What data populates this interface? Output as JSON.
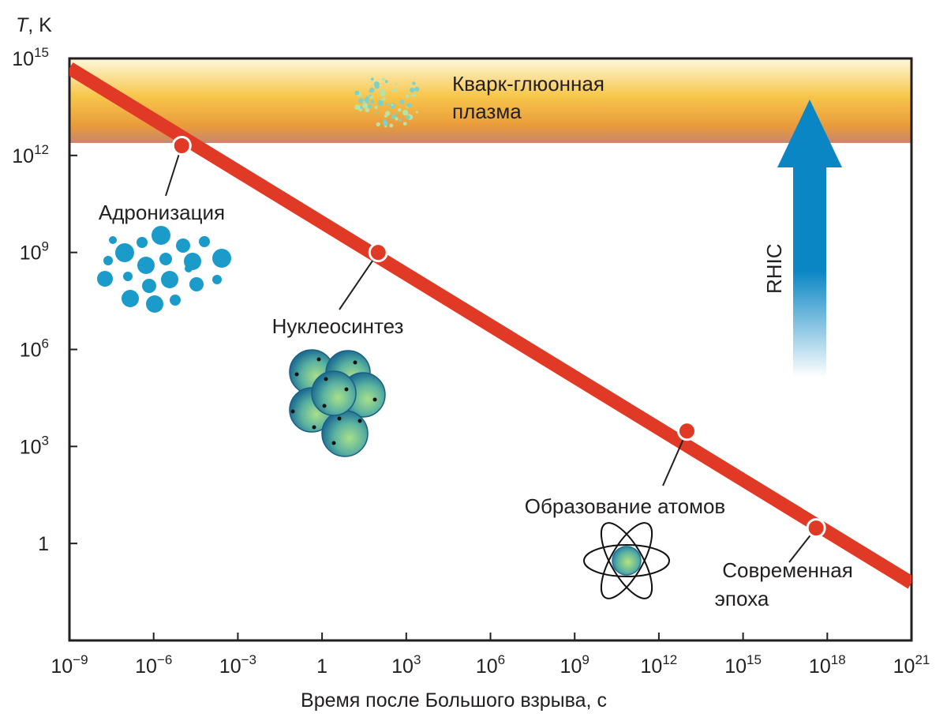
{
  "chart_data": {
    "type": "line",
    "xscale": "log",
    "yscale": "log",
    "xlim": [
      1e-09,
      1e+21
    ],
    "ylim": [
      0.001,
      1000000000000000.0
    ],
    "ylabel_var": "T",
    "ylabel_unit": ", K",
    "xlabel": "Время после Большого взрыва, с",
    "x_ticks": [
      {
        "base": "10",
        "exp": "−9"
      },
      {
        "base": "10",
        "exp": "−6"
      },
      {
        "base": "10",
        "exp": "−3"
      },
      {
        "base": "1",
        "exp": ""
      },
      {
        "base": "10",
        "exp": "3"
      },
      {
        "base": "10",
        "exp": "6"
      },
      {
        "base": "10",
        "exp": "9"
      },
      {
        "base": "10",
        "exp": "12"
      },
      {
        "base": "10",
        "exp": "15"
      },
      {
        "base": "10",
        "exp": "18"
      },
      {
        "base": "10",
        "exp": "21"
      }
    ],
    "y_ticks": [
      {
        "base": "10",
        "exp": "15"
      },
      {
        "base": "10",
        "exp": "12"
      },
      {
        "base": "10",
        "exp": "9"
      },
      {
        "base": "10",
        "exp": "6"
      },
      {
        "base": "10",
        "exp": "3"
      },
      {
        "base": "1",
        "exp": ""
      }
    ],
    "series": [
      {
        "x": [
          1e-09,
          1e+21
        ],
        "y": [
          500000000000000.0,
          0.06
        ],
        "color": "#e03a26"
      }
    ],
    "events": [
      {
        "name": "hadronization",
        "x": 1e-05,
        "y": 2000000000000.0,
        "label": "Адронизация"
      },
      {
        "name": "nucleosynthesis",
        "x": 100,
        "y": 1000000000.0,
        "label": "Нуклеосинтез"
      },
      {
        "name": "atom-formation",
        "x": 10000000000000.0,
        "y": 3000,
        "label": "Образование атомов"
      },
      {
        "name": "present-epoch",
        "x": 4e+17,
        "y": 3,
        "label_lines": [
          "Современная",
          "эпоха"
        ]
      }
    ],
    "band": {
      "y_range": [
        1500000000000.0,
        1000000000000000.0
      ],
      "label_lines": [
        "Кварк-глюонная",
        "плазма"
      ]
    },
    "arrow": {
      "label": "RHIC",
      "color": "#0a86c4"
    },
    "colors": {
      "line": "#e03a26",
      "band_top": "#fdf6d4",
      "band_mid": "#f5b342",
      "band_bottom": "#c8856d",
      "particles": "#1a9bc9",
      "nuclei": "#1e7fa0",
      "plasma_dots": "#7fd0c8"
    }
  }
}
